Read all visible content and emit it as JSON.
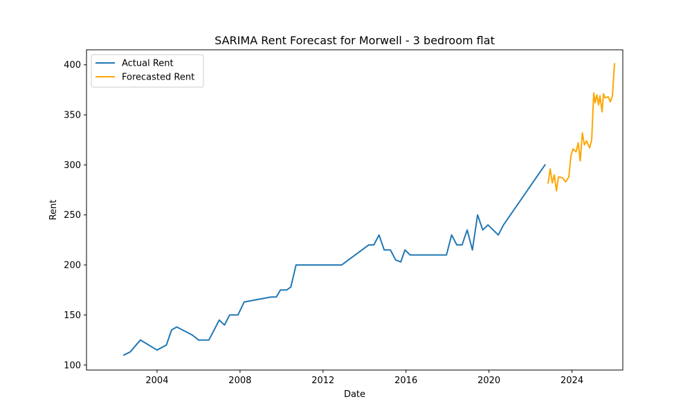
{
  "chart_data": {
    "type": "line",
    "title": "SARIMA Rent Forecast for Morwell - 3 bedroom flat",
    "xlabel": "Date",
    "ylabel": "Rent",
    "xlim": [
      2000.6,
      2026.45
    ],
    "ylim": [
      95,
      415
    ],
    "x_ticks": [
      2004,
      2008,
      2012,
      2016,
      2020,
      2024
    ],
    "y_ticks": [
      100,
      150,
      200,
      250,
      300,
      350,
      400
    ],
    "grid": false,
    "legend_position": "top-left",
    "series": [
      {
        "name": "Actual Rent",
        "color": "#1f77b4",
        "points": [
          [
            2002.4,
            110
          ],
          [
            2002.7,
            113
          ],
          [
            2003.2,
            125
          ],
          [
            2004.0,
            115
          ],
          [
            2004.45,
            120
          ],
          [
            2004.7,
            135
          ],
          [
            2004.95,
            138
          ],
          [
            2005.7,
            130
          ],
          [
            2006.0,
            125
          ],
          [
            2006.5,
            125
          ],
          [
            2007.0,
            145
          ],
          [
            2007.25,
            140
          ],
          [
            2007.5,
            150
          ],
          [
            2007.9,
            150
          ],
          [
            2008.2,
            163
          ],
          [
            2009.5,
            168
          ],
          [
            2009.75,
            168
          ],
          [
            2009.95,
            175
          ],
          [
            2010.25,
            175
          ],
          [
            2010.45,
            178
          ],
          [
            2010.7,
            200
          ],
          [
            2012.9,
            200
          ],
          [
            2014.2,
            220
          ],
          [
            2014.45,
            220
          ],
          [
            2014.7,
            230
          ],
          [
            2014.95,
            215
          ],
          [
            2015.25,
            215
          ],
          [
            2015.5,
            205
          ],
          [
            2015.75,
            203
          ],
          [
            2015.95,
            215
          ],
          [
            2016.2,
            210
          ],
          [
            2017.95,
            210
          ],
          [
            2018.2,
            230
          ],
          [
            2018.45,
            220
          ],
          [
            2018.7,
            220
          ],
          [
            2018.95,
            235
          ],
          [
            2019.2,
            215
          ],
          [
            2019.45,
            250
          ],
          [
            2019.7,
            235
          ],
          [
            2019.95,
            240
          ],
          [
            2020.45,
            230
          ],
          [
            2020.7,
            240
          ],
          [
            2022.7,
            300
          ]
        ]
      },
      {
        "name": "Forecasted Rent",
        "color": "#ffa500",
        "points": [
          [
            2022.85,
            282
          ],
          [
            2022.95,
            296
          ],
          [
            2023.05,
            282
          ],
          [
            2023.15,
            290
          ],
          [
            2023.25,
            274
          ],
          [
            2023.35,
            288
          ],
          [
            2023.55,
            287
          ],
          [
            2023.7,
            283
          ],
          [
            2023.85,
            288
          ],
          [
            2023.95,
            309
          ],
          [
            2024.05,
            316
          ],
          [
            2024.2,
            313
          ],
          [
            2024.3,
            322
          ],
          [
            2024.4,
            304
          ],
          [
            2024.5,
            332
          ],
          [
            2024.6,
            320
          ],
          [
            2024.7,
            324
          ],
          [
            2024.85,
            317
          ],
          [
            2024.95,
            325
          ],
          [
            2025.05,
            372
          ],
          [
            2025.12,
            362
          ],
          [
            2025.2,
            370
          ],
          [
            2025.28,
            360
          ],
          [
            2025.35,
            369
          ],
          [
            2025.45,
            353
          ],
          [
            2025.52,
            371
          ],
          [
            2025.6,
            367
          ],
          [
            2025.75,
            368
          ],
          [
            2025.85,
            363
          ],
          [
            2025.95,
            369
          ],
          [
            2026.05,
            401
          ]
        ]
      }
    ]
  }
}
